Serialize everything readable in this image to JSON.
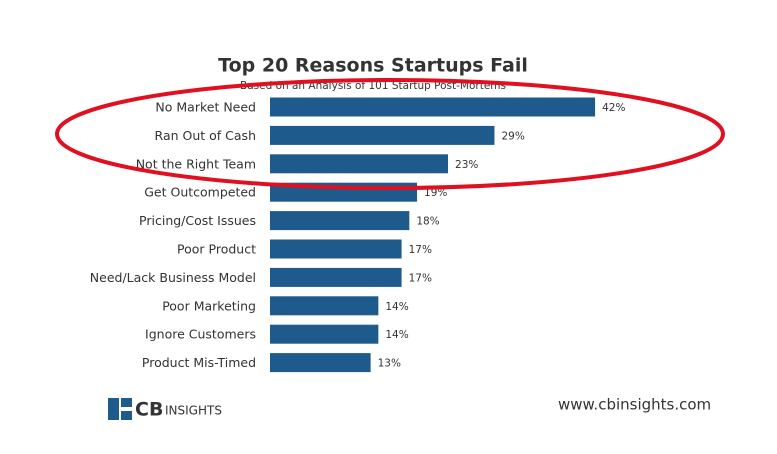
{
  "chart_data": {
    "type": "bar",
    "orientation": "horizontal",
    "title": "Top 20 Reasons Startups Fail",
    "subtitle": "Based on an Analysis of 101 Startup Post-Mortems",
    "categories": [
      "No Market Need",
      "Ran Out of Cash",
      "Not the Right Team",
      "Get Outcompeted",
      "Pricing/Cost Issues",
      "Poor Product",
      "Need/Lack Business Model",
      "Poor Marketing",
      "Ignore Customers",
      "Product Mis-Timed"
    ],
    "values": [
      42,
      29,
      23,
      19,
      18,
      17,
      17,
      14,
      14,
      13
    ],
    "value_labels": [
      "42%",
      "29%",
      "23%",
      "19%",
      "18%",
      "17%",
      "17%",
      "14%",
      "14%",
      "13%"
    ],
    "color": "#1f5a8c",
    "logo": [
      "CB",
      "INSIGHTS"
    ],
    "source": "www.cbinsights.com"
  }
}
